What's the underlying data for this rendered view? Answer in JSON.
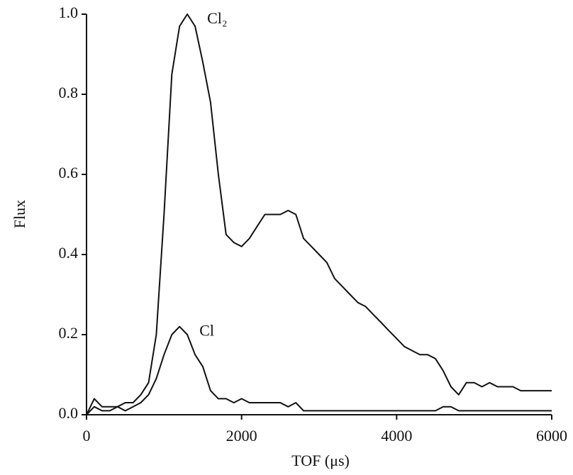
{
  "chart_data": {
    "type": "line",
    "x_label": "TOF (μs)",
    "y_label": "Flux",
    "xlim": [
      0,
      6000
    ],
    "ylim": [
      0,
      1.0
    ],
    "xticks": [
      0,
      2000,
      4000,
      6000
    ],
    "yticks": [
      {
        "value": 0,
        "label": "0.0"
      },
      0.2,
      0.4,
      0.6,
      0.8,
      {
        "value": 1.0,
        "label": "1.0"
      }
    ],
    "x": [
      0,
      100,
      200,
      300,
      400,
      500,
      600,
      700,
      800,
      900,
      1000,
      1100,
      1200,
      1300,
      1400,
      1500,
      1600,
      1700,
      1800,
      1900,
      2000,
      2100,
      2200,
      2300,
      2400,
      2500,
      2600,
      2700,
      2800,
      2900,
      3000,
      3100,
      3200,
      3300,
      3400,
      3500,
      3600,
      3700,
      3800,
      3900,
      4000,
      4100,
      4200,
      4300,
      4400,
      4500,
      4600,
      4700,
      4800,
      4900,
      5000,
      5100,
      5200,
      5300,
      5400,
      5500,
      5600,
      5700,
      5800,
      5900,
      6000
    ],
    "series": [
      {
        "name": "Cl₂",
        "color": "#111111",
        "values": [
          0,
          0.04,
          0.02,
          0.02,
          0.02,
          0.03,
          0.03,
          0.05,
          0.08,
          0.2,
          0.5,
          0.85,
          0.97,
          1.0,
          0.97,
          0.88,
          0.78,
          0.6,
          0.45,
          0.43,
          0.42,
          0.44,
          0.47,
          0.5,
          0.5,
          0.5,
          0.51,
          0.5,
          0.44,
          0.42,
          0.4,
          0.38,
          0.34,
          0.32,
          0.3,
          0.28,
          0.27,
          0.25,
          0.23,
          0.21,
          0.19,
          0.17,
          0.16,
          0.15,
          0.15,
          0.14,
          0.11,
          0.07,
          0.05,
          0.08,
          0.08,
          0.07,
          0.08,
          0.07,
          0.07,
          0.07,
          0.06,
          0.06,
          0.06,
          0.06,
          0.06
        ]
      },
      {
        "name": "Cl",
        "color": "#111111",
        "values": [
          0,
          0.02,
          0.01,
          0.01,
          0.02,
          0.01,
          0.02,
          0.03,
          0.05,
          0.09,
          0.15,
          0.2,
          0.22,
          0.2,
          0.15,
          0.12,
          0.06,
          0.04,
          0.04,
          0.03,
          0.04,
          0.03,
          0.03,
          0.03,
          0.03,
          0.03,
          0.02,
          0.03,
          0.01,
          0.01,
          0.01,
          0.01,
          0.01,
          0.01,
          0.01,
          0.01,
          0.01,
          0.01,
          0.01,
          0.01,
          0.01,
          0.01,
          0.01,
          0.01,
          0.01,
          0.01,
          0.02,
          0.02,
          0.01,
          0.01,
          0.01,
          0.01,
          0.01,
          0.01,
          0.01,
          0.01,
          0.01,
          0.01,
          0.01,
          0.01,
          0.01
        ]
      }
    ]
  }
}
